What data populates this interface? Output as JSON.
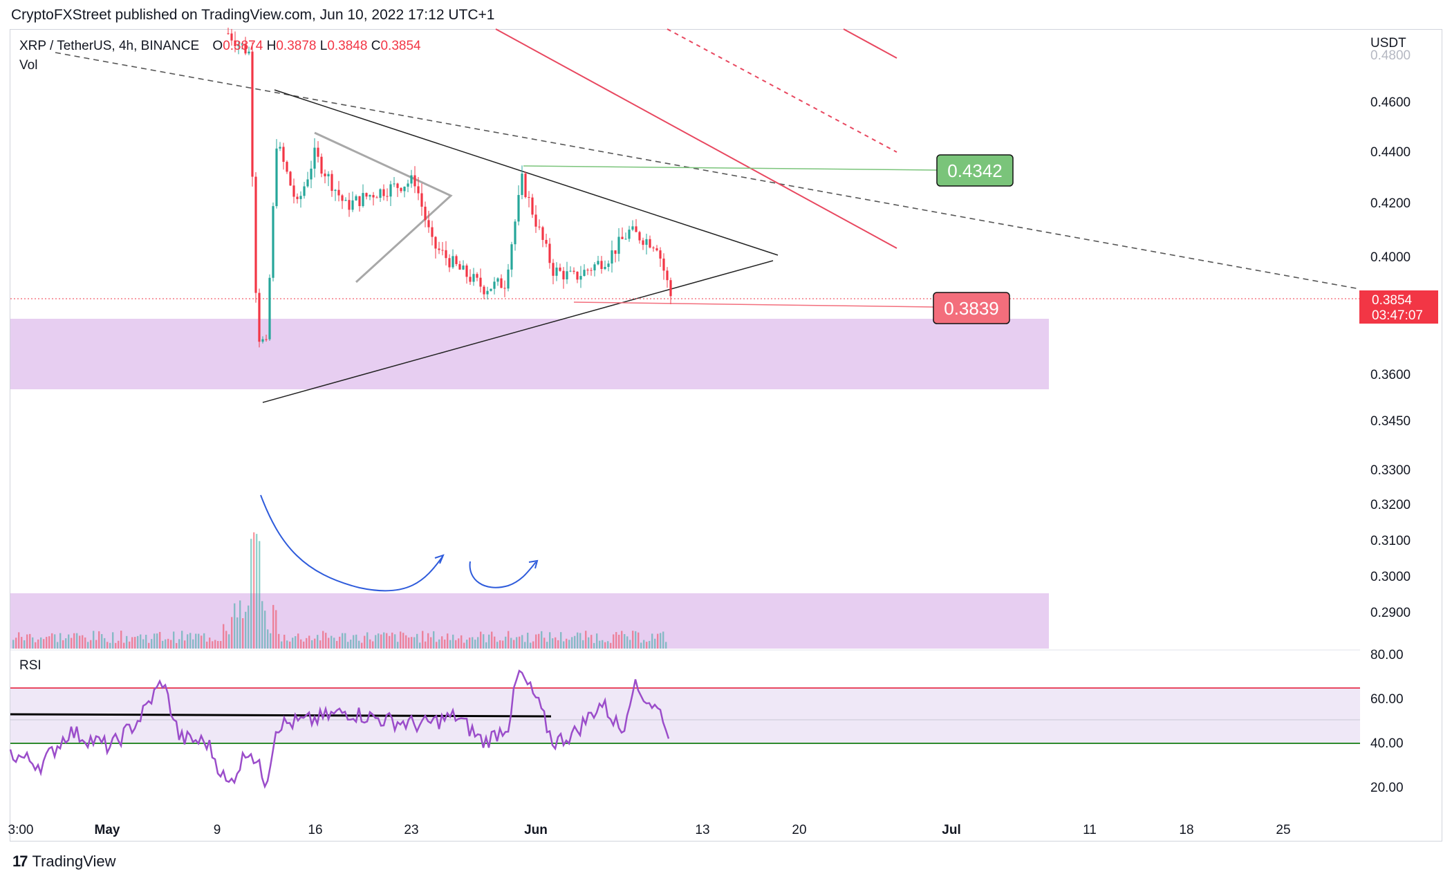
{
  "header": {
    "published": "CryptoFXStreet published on TradingView.com, Jun 10, 2022 17:12 UTC+1"
  },
  "legend": {
    "symbol": "XRP / TetherUS, 4h, BINANCE",
    "open_label": "O",
    "open": "0.3874",
    "high_label": "H",
    "high": "0.3878",
    "low_label": "L",
    "low": "0.3848",
    "close_label": "C",
    "close": "0.3854",
    "vol_label": "Vol",
    "rsi_label": "RSI"
  },
  "currency": "USDT",
  "footer": {
    "brand": "TradingView",
    "logo": "17"
  },
  "colors": {
    "up": "#26a69a",
    "down": "#f23645",
    "zone": "#e3c6ee",
    "rsi_line": "#9b4dca",
    "rsi_band": "#efe8f7",
    "target_box": "#7ac47a",
    "stop_box": "#f36e7c",
    "curve": "#2e5bdb"
  },
  "chart_data": {
    "type": "candlestick",
    "title": "XRP / TetherUS, 4h, BINANCE",
    "price_axis": {
      "ticks": [
        "0.4800",
        "0.4600",
        "0.4400",
        "0.4200",
        "0.4000",
        "0.3600",
        "0.3450",
        "0.3300",
        "0.3200",
        "0.3100",
        "0.3000",
        "0.2900"
      ],
      "current_price": "0.3854",
      "countdown": "03:47:07",
      "target_label": "0.4342",
      "stop_label": "0.3839"
    },
    "time_axis": {
      "ticks": [
        "3:00",
        "May",
        "9",
        "16",
        "23",
        "Jun",
        "13",
        "20",
        "Jul",
        "11",
        "18",
        "25"
      ]
    },
    "rsi_axis": {
      "ticks": [
        "80.00",
        "60.00",
        "40.00",
        "20.00"
      ]
    },
    "rsi_levels": {
      "overbought": 64,
      "oversold": 40
    },
    "ohlc_current": {
      "open": 0.3874,
      "high": 0.3878,
      "low": 0.3848,
      "close": 0.3854
    }
  }
}
